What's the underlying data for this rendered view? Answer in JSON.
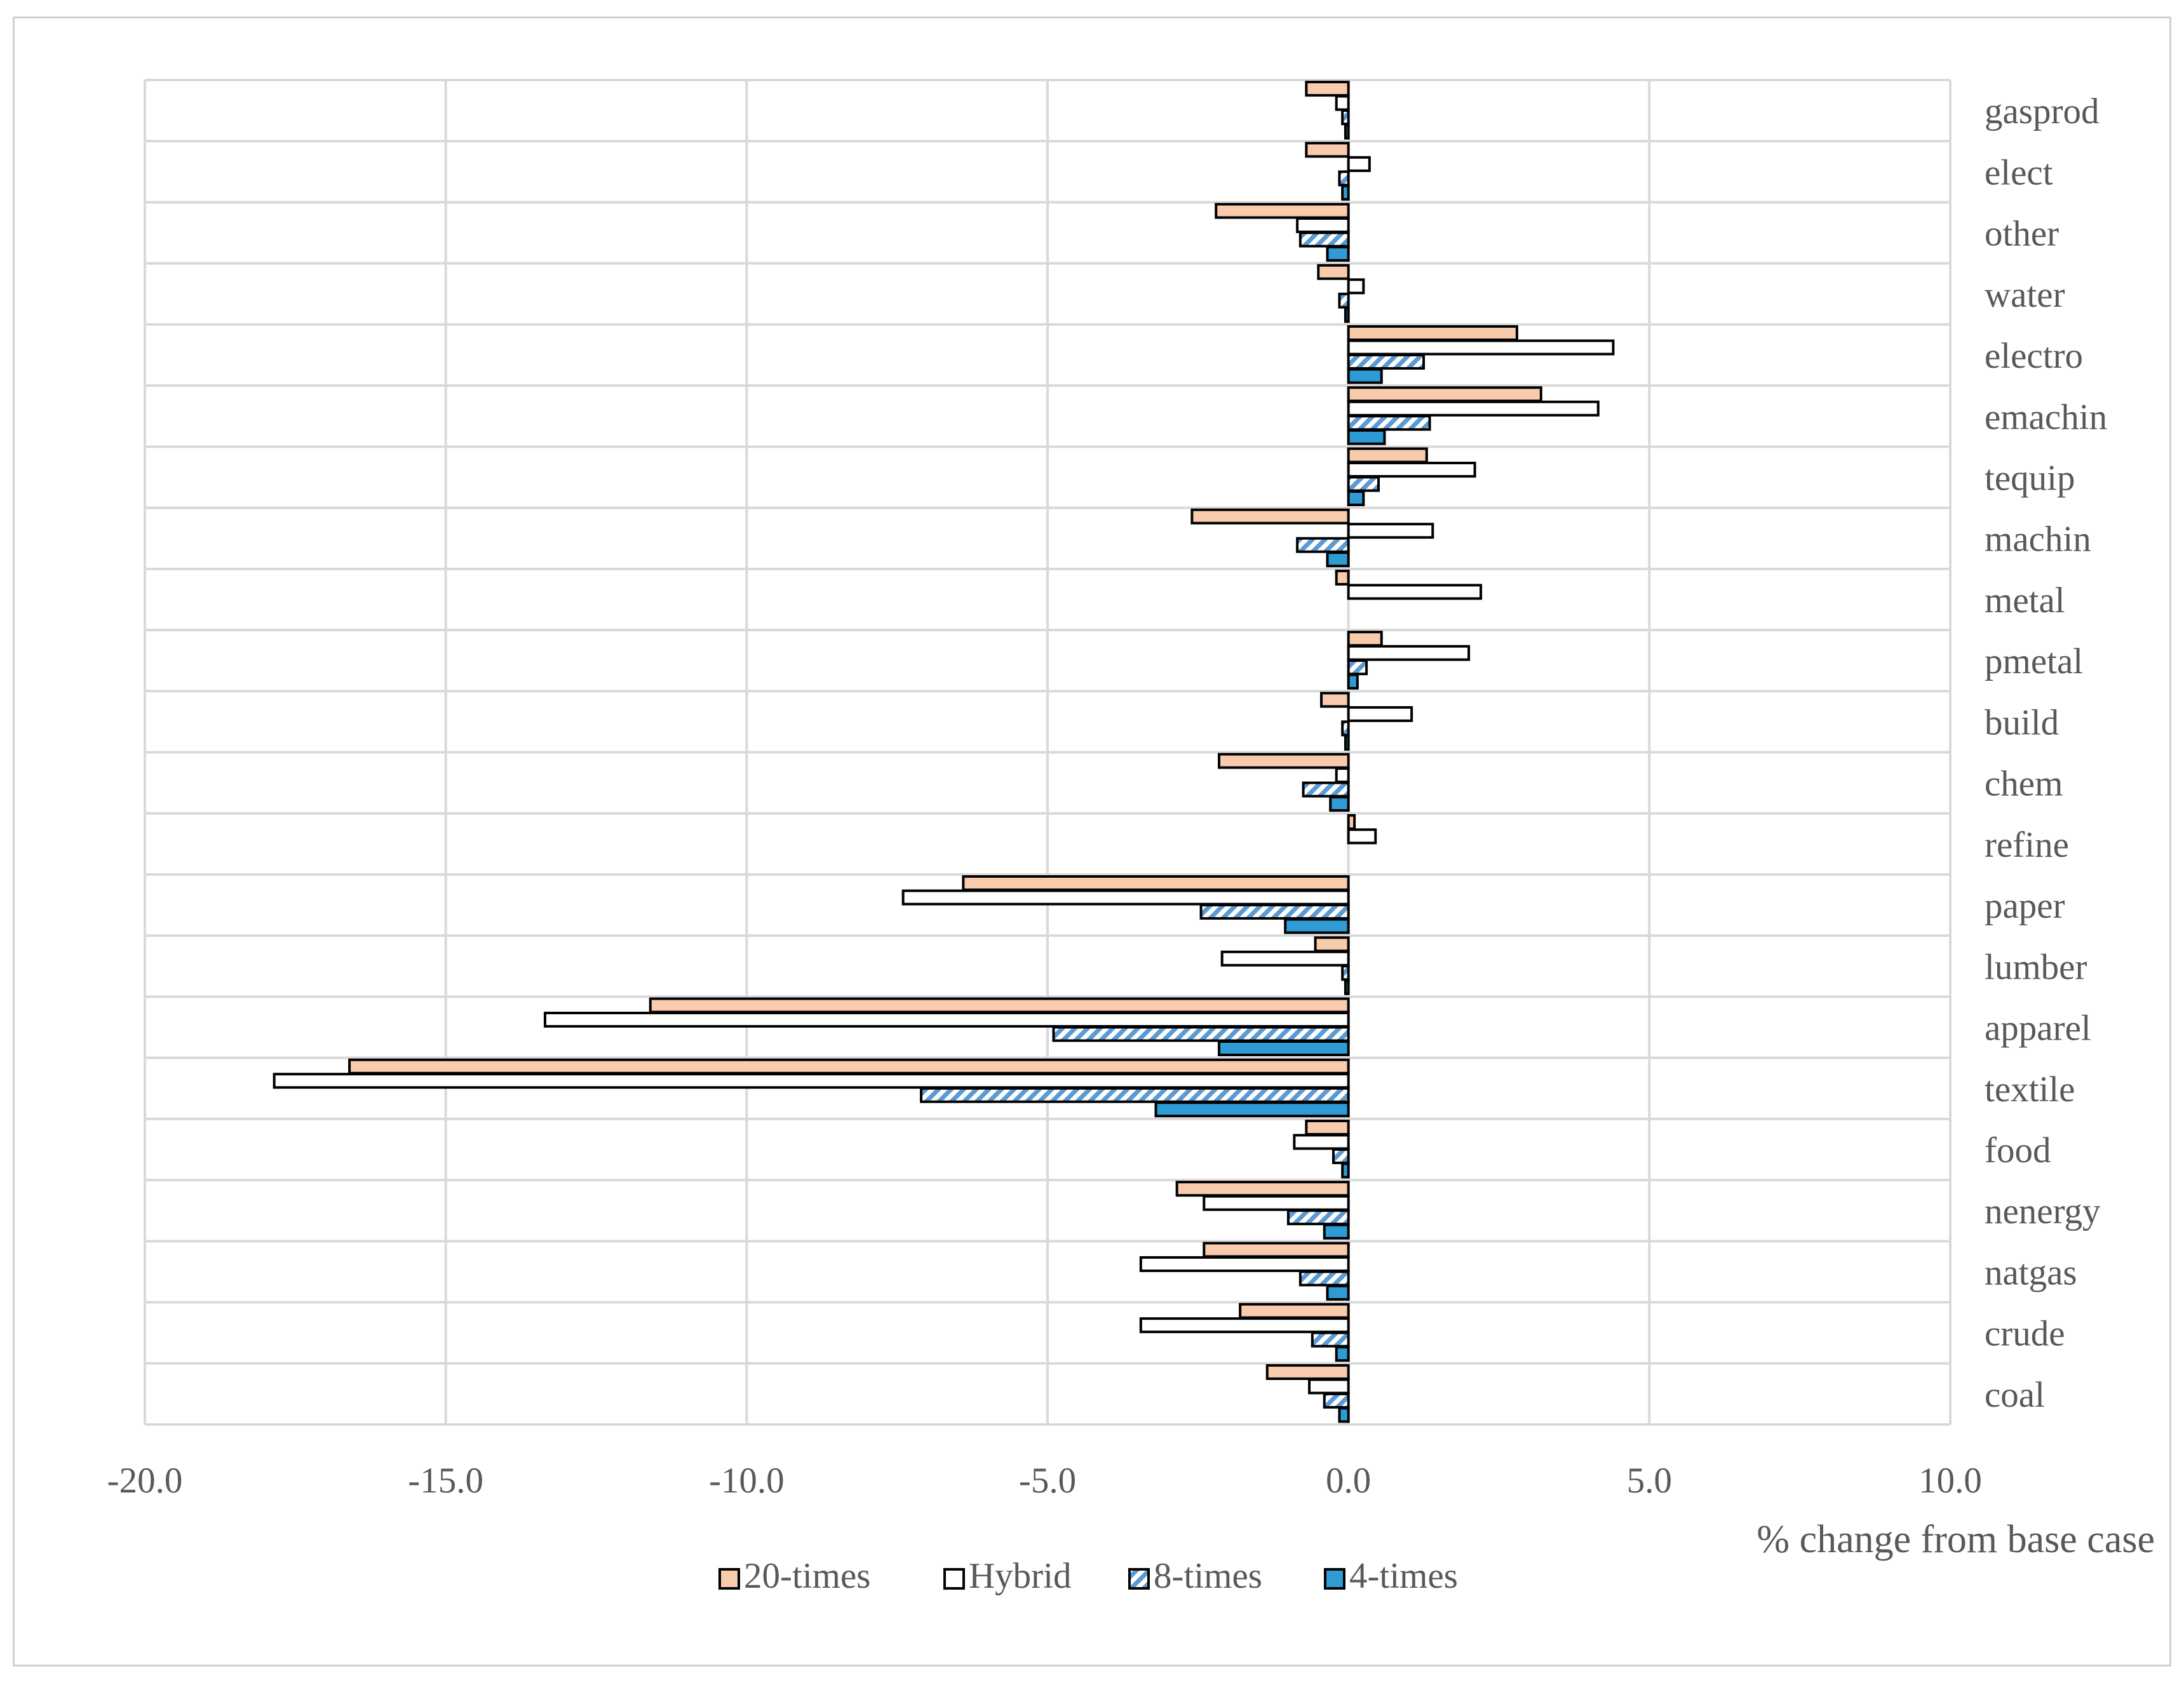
{
  "chart_data": {
    "type": "bar",
    "orientation": "horizontal",
    "title": "",
    "xlabel": "% change from base case",
    "ylabel": "",
    "xlim": [
      -20,
      10
    ],
    "xticks": [
      -20,
      -15,
      -10,
      -5,
      0,
      5,
      10
    ],
    "xtick_labels": [
      "-20.0",
      "-15.0",
      "-10.0",
      "-5.0",
      "0.0",
      "5.0",
      "10.0"
    ],
    "grid": true,
    "legend_position": "bottom",
    "categories": [
      "gasprod",
      "elect",
      "other",
      "water",
      "electro",
      "emachin",
      "tequip",
      "machin",
      "metal",
      "pmetal",
      "build",
      "chem",
      "refine",
      "paper",
      "lumber",
      "apparel",
      "textile",
      "food",
      "nenergy",
      "natgas",
      "crude",
      "coal"
    ],
    "series": [
      {
        "name": "20-times",
        "color": "#F8CBAD",
        "pattern": "solid",
        "values": [
          -0.7,
          -0.7,
          -2.2,
          -0.5,
          2.8,
          3.2,
          1.3,
          -2.6,
          -0.2,
          0.55,
          -0.45,
          -2.15,
          0.1,
          -6.4,
          -0.55,
          -11.6,
          -16.6,
          -0.7,
          -2.85,
          -2.4,
          -1.8,
          -1.35
        ]
      },
      {
        "name": "Hybrid",
        "color": "#FFFFFF",
        "pattern": "solid",
        "values": [
          -0.2,
          0.35,
          -0.85,
          0.25,
          4.4,
          4.15,
          2.1,
          1.4,
          2.2,
          2.0,
          1.05,
          -0.2,
          0.45,
          -7.4,
          -2.1,
          -13.35,
          -17.85,
          -0.9,
          -2.4,
          -3.45,
          -3.45,
          -0.65
        ]
      },
      {
        "name": "8-times",
        "color": "#5B9BD5",
        "pattern": "hatched",
        "values": [
          -0.1,
          -0.15,
          -0.8,
          -0.15,
          1.25,
          1.35,
          0.5,
          -0.85,
          0.0,
          0.3,
          -0.1,
          -0.75,
          0.0,
          -2.45,
          -0.1,
          -4.9,
          -7.1,
          -0.25,
          -1.0,
          -0.8,
          -0.6,
          -0.4
        ]
      },
      {
        "name": "4-times",
        "color": "#2E9BD5",
        "pattern": "solid",
        "values": [
          -0.05,
          -0.1,
          -0.35,
          -0.05,
          0.55,
          0.6,
          0.25,
          -0.35,
          0.0,
          0.15,
          -0.05,
          -0.3,
          0.0,
          -1.05,
          -0.05,
          -2.15,
          -3.2,
          -0.1,
          -0.4,
          -0.35,
          -0.2,
          -0.15
        ]
      }
    ]
  }
}
